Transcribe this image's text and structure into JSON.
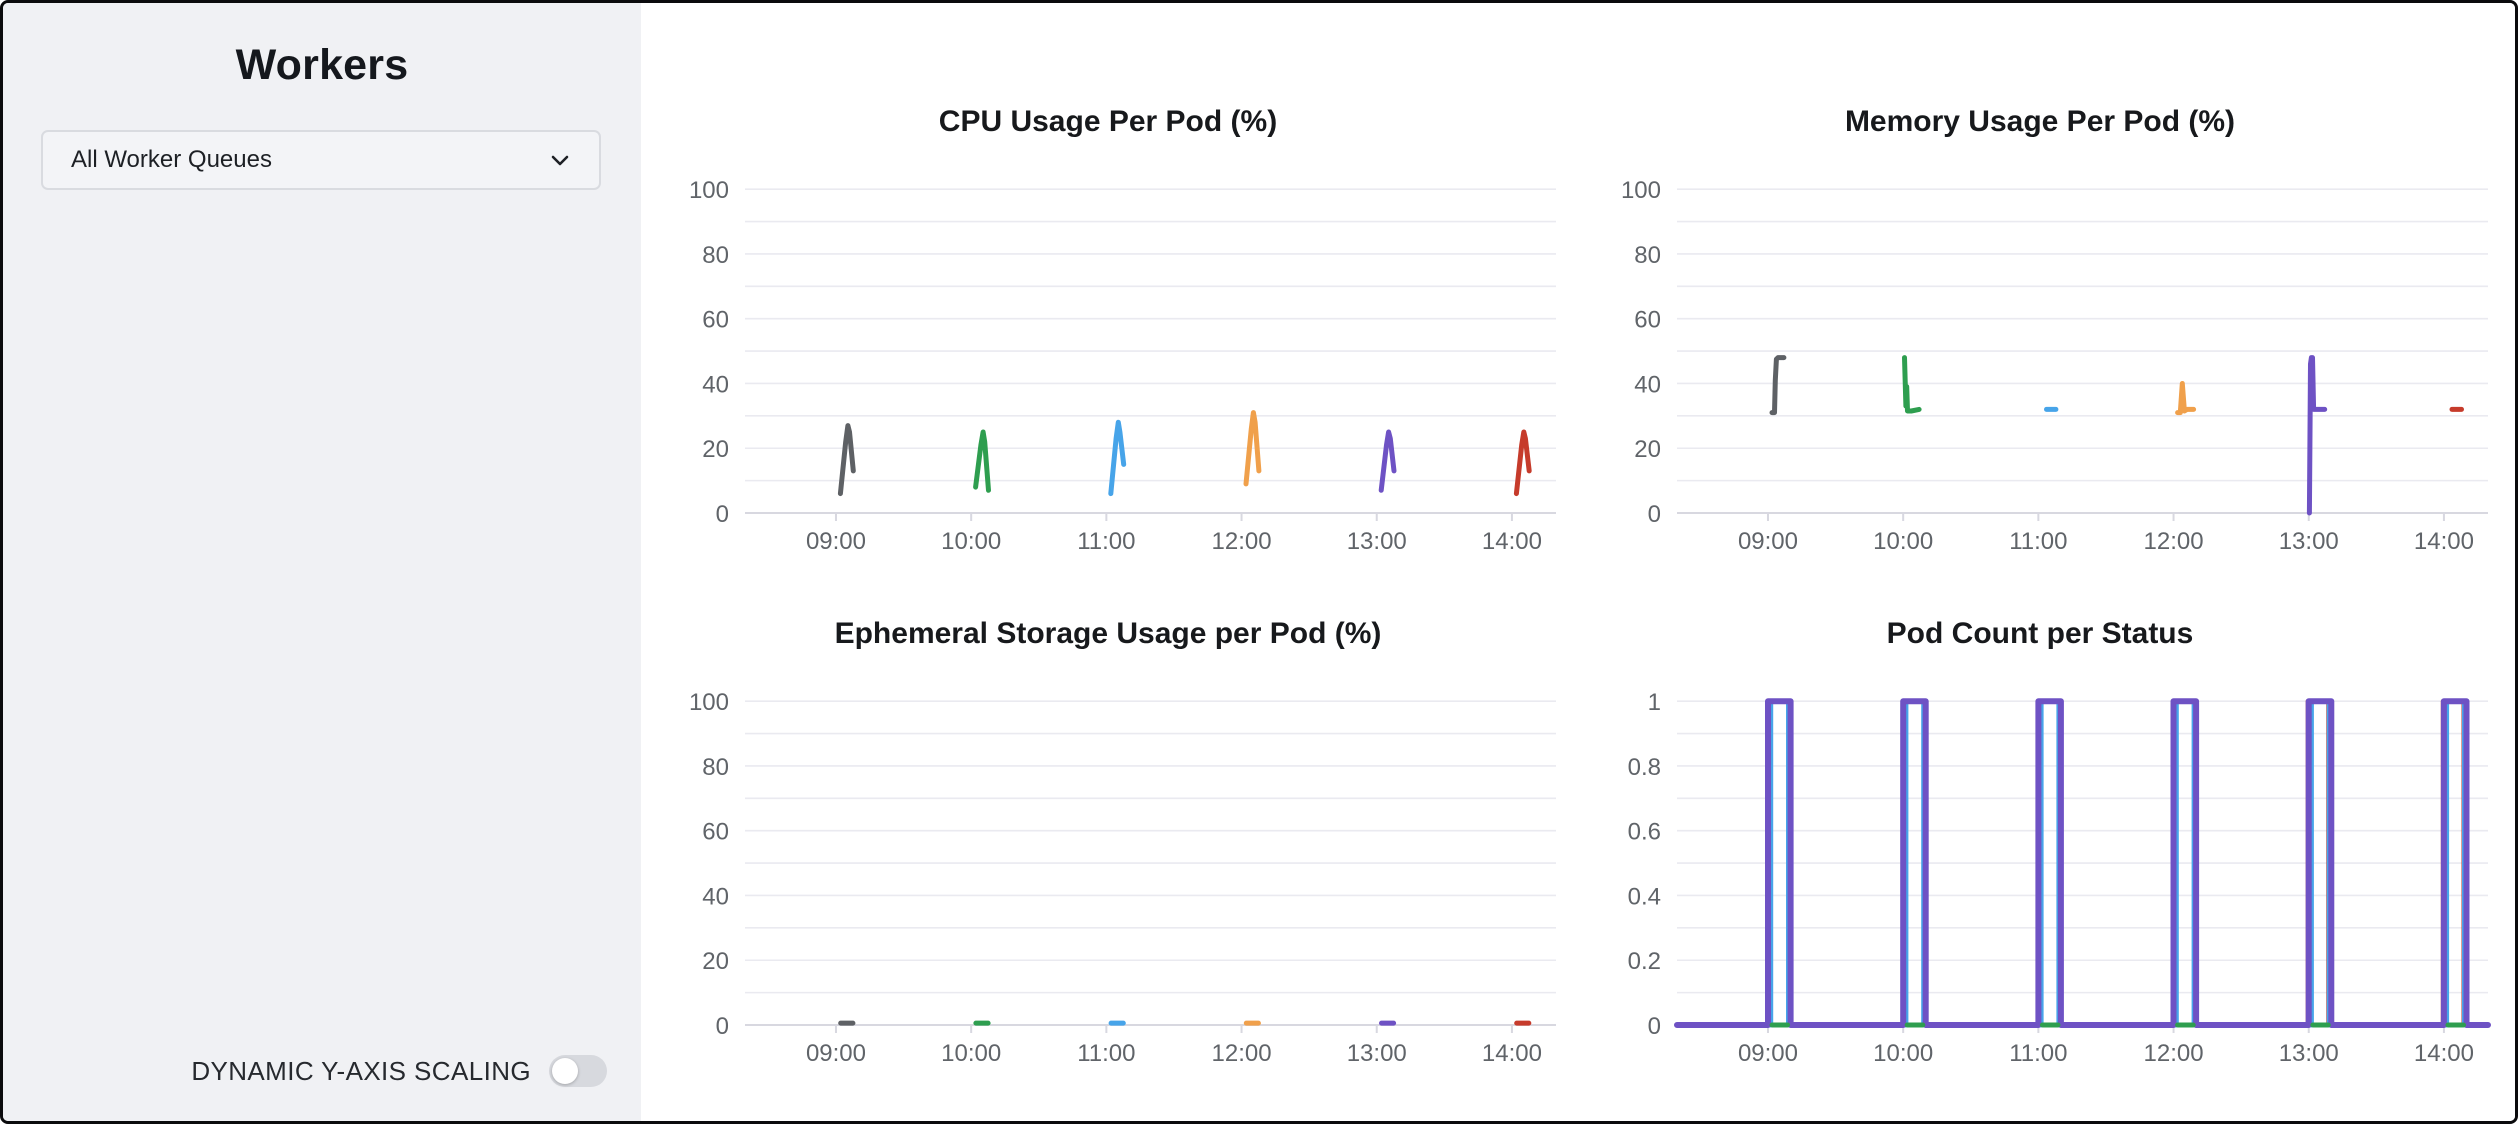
{
  "sidebar": {
    "title": "Workers",
    "queue_selector": {
      "value": "All Worker Queues"
    },
    "toggle": {
      "label": "DYNAMIC Y-AXIS SCALING",
      "state": "off"
    }
  },
  "colors": {
    "sidebar_bg": "#f0f1f4",
    "grid": "#eaeaf0",
    "zero_line": "#d8d8e0",
    "tick_text": "#606469",
    "series_gray": "#5e6165",
    "series_green": "#2e9e4f",
    "series_blue": "#47a4e9",
    "series_orange": "#f0a04b",
    "series_purple": "#6e52c4",
    "series_red": "#c63b2b"
  },
  "chart_data": [
    {
      "type": "line",
      "title": "CPU Usage Per Pod (%)",
      "ylim": [
        0,
        105
      ],
      "y_max_line": 100,
      "grid_step": 10,
      "y_ticks": [
        {
          "v": 0,
          "label": "0"
        },
        {
          "v": 20,
          "label": "20"
        },
        {
          "v": 40,
          "label": "40"
        },
        {
          "v": 60,
          "label": "60"
        },
        {
          "v": 80,
          "label": "80"
        },
        {
          "v": 100,
          "label": "100"
        }
      ],
      "x_range": [
        8.327,
        14.326
      ],
      "x_ticks": [
        {
          "t": 9,
          "label": "09:00"
        },
        {
          "t": 10,
          "label": "10:00"
        },
        {
          "t": 11,
          "label": "11:00"
        },
        {
          "t": 12,
          "label": "12:00"
        },
        {
          "t": 13,
          "label": "13:00"
        },
        {
          "t": 14,
          "label": "14:00"
        }
      ],
      "series": [
        {
          "name": "gray",
          "color": "#5e6165",
          "width": 5,
          "points": [
            [
              9.033,
              6
            ],
            [
              9.072,
              22
            ],
            [
              9.088,
              27
            ],
            [
              9.1,
              25
            ],
            [
              9.128,
              13
            ]
          ]
        },
        {
          "name": "green",
          "color": "#2e9e4f",
          "width": 5,
          "points": [
            [
              10.033,
              8
            ],
            [
              10.072,
              21
            ],
            [
              10.088,
              25
            ],
            [
              10.1,
              22
            ],
            [
              10.128,
              7
            ]
          ]
        },
        {
          "name": "blue",
          "color": "#47a4e9",
          "width": 5,
          "points": [
            [
              11.033,
              6
            ],
            [
              11.072,
              23
            ],
            [
              11.088,
              28
            ],
            [
              11.1,
              25
            ],
            [
              11.128,
              15
            ]
          ]
        },
        {
          "name": "orange",
          "color": "#f0a04b",
          "width": 5,
          "points": [
            [
              12.033,
              9
            ],
            [
              12.072,
              26
            ],
            [
              12.088,
              31
            ],
            [
              12.1,
              28
            ],
            [
              12.128,
              13
            ]
          ]
        },
        {
          "name": "purple",
          "color": "#6e52c4",
          "width": 5,
          "points": [
            [
              13.033,
              7
            ],
            [
              13.072,
              21
            ],
            [
              13.088,
              25
            ],
            [
              13.1,
              23
            ],
            [
              13.128,
              13
            ]
          ]
        },
        {
          "name": "red",
          "color": "#c63b2b",
          "width": 5,
          "points": [
            [
              14.033,
              6
            ],
            [
              14.072,
              21
            ],
            [
              14.088,
              25
            ],
            [
              14.1,
              23
            ],
            [
              14.128,
              13
            ]
          ]
        }
      ]
    },
    {
      "type": "line",
      "title": "Memory Usage Per Pod (%)",
      "ylim": [
        0,
        105
      ],
      "y_max_line": 100,
      "grid_step": 10,
      "y_ticks": [
        {
          "v": 0,
          "label": "0"
        },
        {
          "v": 20,
          "label": "20"
        },
        {
          "v": 40,
          "label": "40"
        },
        {
          "v": 60,
          "label": "60"
        },
        {
          "v": 80,
          "label": "80"
        },
        {
          "v": 100,
          "label": "100"
        }
      ],
      "x_range": [
        8.327,
        14.326
      ],
      "x_ticks": [
        {
          "t": 9,
          "label": "09:00"
        },
        {
          "t": 10,
          "label": "10:00"
        },
        {
          "t": 11,
          "label": "11:00"
        },
        {
          "t": 12,
          "label": "12:00"
        },
        {
          "t": 13,
          "label": "13:00"
        },
        {
          "t": 14,
          "label": "14:00"
        }
      ],
      "series": [
        {
          "name": "gray",
          "color": "#5e6165",
          "width": 5,
          "points": [
            [
              9.03,
              31
            ],
            [
              9.048,
              31
            ],
            [
              9.054,
              41
            ],
            [
              9.062,
              47.5
            ],
            [
              9.075,
              48
            ],
            [
              9.118,
              48
            ]
          ]
        },
        {
          "name": "green",
          "color": "#2e9e4f",
          "width": 5,
          "points": [
            [
              10.01,
              48
            ],
            [
              10.02,
              33
            ],
            [
              10.026,
              39
            ],
            [
              10.032,
              31.5
            ],
            [
              10.06,
              31.5
            ],
            [
              10.118,
              32
            ]
          ]
        },
        {
          "name": "blue",
          "color": "#47a4e9",
          "width": 5,
          "points": [
            [
              11.06,
              32
            ],
            [
              11.13,
              32
            ]
          ]
        },
        {
          "name": "orange",
          "color": "#f0a04b",
          "width": 5,
          "points": [
            [
              12.03,
              31
            ],
            [
              12.05,
              31
            ],
            [
              12.065,
              40
            ],
            [
              12.08,
              31.5
            ],
            [
              12.1,
              32
            ],
            [
              12.148,
              32
            ]
          ]
        },
        {
          "name": "purple",
          "color": "#6e52c4",
          "width": 5,
          "points": [
            [
              13.005,
              0
            ],
            [
              13.013,
              46
            ],
            [
              13.02,
              48
            ],
            [
              13.028,
              48
            ],
            [
              13.036,
              32
            ],
            [
              13.06,
              32
            ],
            [
              13.118,
              32
            ]
          ]
        },
        {
          "name": "red",
          "color": "#c63b2b",
          "width": 5,
          "points": [
            [
              14.06,
              32
            ],
            [
              14.13,
              32
            ]
          ]
        }
      ]
    },
    {
      "type": "line",
      "title": "Ephemeral Storage Usage per Pod (%)",
      "ylim": [
        0,
        105
      ],
      "y_max_line": 100,
      "grid_step": 10,
      "y_ticks": [
        {
          "v": 0,
          "label": "0"
        },
        {
          "v": 20,
          "label": "20"
        },
        {
          "v": 40,
          "label": "40"
        },
        {
          "v": 60,
          "label": "60"
        },
        {
          "v": 80,
          "label": "80"
        },
        {
          "v": 100,
          "label": "100"
        }
      ],
      "x_range": [
        8.327,
        14.326
      ],
      "x_ticks": [
        {
          "t": 9,
          "label": "09:00"
        },
        {
          "t": 10,
          "label": "10:00"
        },
        {
          "t": 11,
          "label": "11:00"
        },
        {
          "t": 12,
          "label": "12:00"
        },
        {
          "t": 13,
          "label": "13:00"
        },
        {
          "t": 14,
          "label": "14:00"
        }
      ],
      "series": [
        {
          "name": "gray",
          "color": "#5e6165",
          "width": 5,
          "points": [
            [
              9.035,
              0.6
            ],
            [
              9.125,
              0.6
            ]
          ]
        },
        {
          "name": "green",
          "color": "#2e9e4f",
          "width": 5,
          "points": [
            [
              10.035,
              0.6
            ],
            [
              10.125,
              0.6
            ]
          ]
        },
        {
          "name": "blue",
          "color": "#47a4e9",
          "width": 5,
          "points": [
            [
              11.035,
              0.6
            ],
            [
              11.125,
              0.6
            ]
          ]
        },
        {
          "name": "orange",
          "color": "#f0a04b",
          "width": 5,
          "points": [
            [
              12.035,
              0.6
            ],
            [
              12.125,
              0.6
            ]
          ]
        },
        {
          "name": "purple",
          "color": "#6e52c4",
          "width": 5,
          "points": [
            [
              13.035,
              0.6
            ],
            [
              13.125,
              0.6
            ]
          ]
        },
        {
          "name": "red",
          "color": "#c63b2b",
          "width": 5,
          "points": [
            [
              14.035,
              0.6
            ],
            [
              14.125,
              0.6
            ]
          ]
        }
      ]
    },
    {
      "type": "line",
      "title": "Pod Count per Status",
      "ylim": [
        0,
        1.05
      ],
      "y_max_line": 1,
      "grid_step": 0.1,
      "y_ticks": [
        {
          "v": 0,
          "label": "0"
        },
        {
          "v": 0.2,
          "label": "0.2"
        },
        {
          "v": 0.4,
          "label": "0.4"
        },
        {
          "v": 0.6,
          "label": "0.6"
        },
        {
          "v": 0.8,
          "label": "0.8"
        },
        {
          "v": 1,
          "label": "1"
        }
      ],
      "x_range": [
        8.327,
        14.326
      ],
      "x_ticks": [
        {
          "t": 9,
          "label": "09:00"
        },
        {
          "t": 10,
          "label": "10:00"
        },
        {
          "t": 11,
          "label": "11:00"
        },
        {
          "t": 12,
          "label": "12:00"
        },
        {
          "t": 13,
          "label": "13:00"
        },
        {
          "t": 14,
          "label": "14:00"
        }
      ],
      "series": [
        {
          "name": "red",
          "color": "#c63b2b",
          "width": 4,
          "points": [
            [
              12.992,
              0
            ],
            [
              12.992,
              1
            ],
            [
              13.145,
              1
            ],
            [
              13.145,
              0
            ],
            null,
            [
              13.992,
              0
            ],
            [
              13.992,
              1
            ],
            [
              14.145,
              1
            ],
            [
              14.145,
              0
            ]
          ]
        },
        {
          "name": "blue",
          "color": "#47a4e9",
          "width": 5,
          "points": [
            [
              8.327,
              0
            ],
            [
              9.02,
              0
            ],
            [
              9.02,
              1
            ],
            [
              9.152,
              1
            ],
            [
              9.152,
              0
            ],
            [
              10.02,
              0
            ],
            [
              10.02,
              1
            ],
            [
              10.152,
              1
            ],
            [
              10.152,
              0
            ],
            [
              11.02,
              0
            ],
            [
              11.02,
              1
            ],
            [
              11.152,
              1
            ],
            [
              11.152,
              0
            ],
            [
              12.02,
              0
            ],
            [
              12.02,
              1
            ],
            [
              12.152,
              1
            ],
            [
              12.152,
              0
            ],
            [
              13.02,
              0
            ],
            [
              13.02,
              1
            ],
            [
              13.152,
              1
            ],
            [
              13.152,
              0
            ],
            [
              14.02,
              0
            ],
            [
              14.02,
              1
            ],
            [
              14.152,
              1
            ],
            [
              14.152,
              0
            ],
            [
              14.326,
              0
            ]
          ]
        },
        {
          "name": "purple",
          "color": "#6e52c4",
          "width": 6,
          "points": [
            [
              8.327,
              0
            ],
            [
              9.0,
              0
            ],
            [
              9.0,
              1
            ],
            [
              9.167,
              1
            ],
            [
              9.167,
              0
            ],
            [
              10.0,
              0
            ],
            [
              10.0,
              1
            ],
            [
              10.167,
              1
            ],
            [
              10.167,
              0
            ],
            [
              11.0,
              0
            ],
            [
              11.0,
              1
            ],
            [
              11.167,
              1
            ],
            [
              11.167,
              0
            ],
            [
              12.0,
              0
            ],
            [
              12.0,
              1
            ],
            [
              12.167,
              1
            ],
            [
              12.167,
              0
            ],
            [
              13.0,
              0
            ],
            [
              13.0,
              1
            ],
            [
              13.167,
              1
            ],
            [
              13.167,
              0
            ],
            [
              14.0,
              0
            ],
            [
              14.0,
              1
            ],
            [
              14.167,
              1
            ],
            [
              14.167,
              0
            ],
            [
              14.326,
              0
            ]
          ]
        },
        {
          "name": "green",
          "color": "#2e9e4f",
          "width": 5,
          "points": [
            [
              9.03,
              0
            ],
            [
              9.145,
              0
            ],
            null,
            [
              10.03,
              0
            ],
            [
              10.145,
              0
            ],
            null,
            [
              11.03,
              0
            ],
            [
              11.145,
              0
            ],
            null,
            [
              12.03,
              0
            ],
            [
              12.145,
              0
            ],
            null,
            [
              13.03,
              0
            ],
            [
              13.145,
              0
            ],
            null,
            [
              14.03,
              0
            ],
            [
              14.145,
              0
            ]
          ]
        }
      ]
    }
  ]
}
